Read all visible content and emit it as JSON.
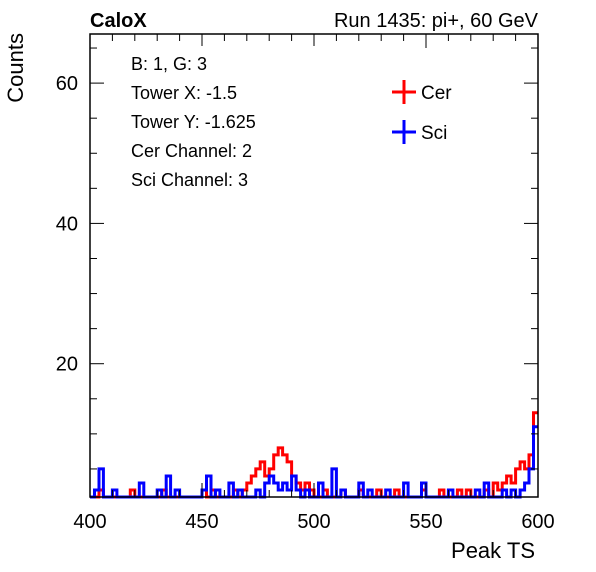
{
  "header": {
    "left": "CaloX",
    "right": "Run 1435: pi+, 60 GeV"
  },
  "info_box": {
    "lines": [
      "B: 1, G: 3",
      "Tower X: -1.5",
      "Tower Y: -1.625",
      "Cer Channel: 2",
      "Sci Channel: 3"
    ]
  },
  "chart_data": {
    "type": "line",
    "title": "",
    "xlabel": "Peak TS",
    "ylabel": "Counts",
    "xlim": [
      400,
      600
    ],
    "ylim": [
      1,
      67
    ],
    "x_ticks": [
      400,
      450,
      500,
      550,
      600
    ],
    "y_ticks": [
      20,
      40,
      60
    ],
    "bin_width": 2,
    "legend_position": "top-right",
    "grid": false,
    "series": [
      {
        "name": "Cer",
        "color": "#ff0000",
        "values": [
          {
            "x": 400,
            "y": 1
          },
          {
            "x": 404,
            "y": 2
          },
          {
            "x": 410,
            "y": 1
          },
          {
            "x": 414,
            "y": 1
          },
          {
            "x": 418,
            "y": 2
          },
          {
            "x": 422,
            "y": 1
          },
          {
            "x": 428,
            "y": 1
          },
          {
            "x": 432,
            "y": 2
          },
          {
            "x": 440,
            "y": 1
          },
          {
            "x": 446,
            "y": 1
          },
          {
            "x": 450,
            "y": 2
          },
          {
            "x": 454,
            "y": 2
          },
          {
            "x": 460,
            "y": 1
          },
          {
            "x": 464,
            "y": 2
          },
          {
            "x": 468,
            "y": 2
          },
          {
            "x": 470,
            "y": 3
          },
          {
            "x": 472,
            "y": 4
          },
          {
            "x": 474,
            "y": 5
          },
          {
            "x": 476,
            "y": 6
          },
          {
            "x": 478,
            "y": 4
          },
          {
            "x": 480,
            "y": 5
          },
          {
            "x": 482,
            "y": 7
          },
          {
            "x": 484,
            "y": 8
          },
          {
            "x": 486,
            "y": 7
          },
          {
            "x": 488,
            "y": 6
          },
          {
            "x": 490,
            "y": 4
          },
          {
            "x": 492,
            "y": 3
          },
          {
            "x": 494,
            "y": 2
          },
          {
            "x": 496,
            "y": 3
          },
          {
            "x": 498,
            "y": 2
          },
          {
            "x": 500,
            "y": 1
          },
          {
            "x": 504,
            "y": 2
          },
          {
            "x": 508,
            "y": 1
          },
          {
            "x": 512,
            "y": 2
          },
          {
            "x": 516,
            "y": 1
          },
          {
            "x": 520,
            "y": 2
          },
          {
            "x": 524,
            "y": 1
          },
          {
            "x": 528,
            "y": 2
          },
          {
            "x": 532,
            "y": 1
          },
          {
            "x": 536,
            "y": 2
          },
          {
            "x": 540,
            "y": 1
          },
          {
            "x": 544,
            "y": 1
          },
          {
            "x": 548,
            "y": 2
          },
          {
            "x": 552,
            "y": 1
          },
          {
            "x": 556,
            "y": 2
          },
          {
            "x": 560,
            "y": 1
          },
          {
            "x": 564,
            "y": 2
          },
          {
            "x": 568,
            "y": 2
          },
          {
            "x": 572,
            "y": 1
          },
          {
            "x": 576,
            "y": 2
          },
          {
            "x": 580,
            "y": 3
          },
          {
            "x": 582,
            "y": 2
          },
          {
            "x": 584,
            "y": 3
          },
          {
            "x": 586,
            "y": 4
          },
          {
            "x": 588,
            "y": 3
          },
          {
            "x": 590,
            "y": 5
          },
          {
            "x": 592,
            "y": 6
          },
          {
            "x": 594,
            "y": 5
          },
          {
            "x": 596,
            "y": 7
          },
          {
            "x": 598,
            "y": 13
          }
        ]
      },
      {
        "name": "Sci",
        "color": "#0000ff",
        "values": [
          {
            "x": 400,
            "y": 1
          },
          {
            "x": 402,
            "y": 2
          },
          {
            "x": 404,
            "y": 5
          },
          {
            "x": 406,
            "y": 1
          },
          {
            "x": 410,
            "y": 2
          },
          {
            "x": 414,
            "y": 1
          },
          {
            "x": 418,
            "y": 1
          },
          {
            "x": 422,
            "y": 3
          },
          {
            "x": 426,
            "y": 1
          },
          {
            "x": 430,
            "y": 2
          },
          {
            "x": 434,
            "y": 4
          },
          {
            "x": 438,
            "y": 2
          },
          {
            "x": 442,
            "y": 1
          },
          {
            "x": 446,
            "y": 1
          },
          {
            "x": 450,
            "y": 2
          },
          {
            "x": 452,
            "y": 4
          },
          {
            "x": 456,
            "y": 2
          },
          {
            "x": 458,
            "y": 1
          },
          {
            "x": 462,
            "y": 3
          },
          {
            "x": 466,
            "y": 2
          },
          {
            "x": 470,
            "y": 1
          },
          {
            "x": 474,
            "y": 2
          },
          {
            "x": 478,
            "y": 3
          },
          {
            "x": 480,
            "y": 4
          },
          {
            "x": 482,
            "y": 3
          },
          {
            "x": 484,
            "y": 2
          },
          {
            "x": 486,
            "y": 3
          },
          {
            "x": 488,
            "y": 2
          },
          {
            "x": 490,
            "y": 4
          },
          {
            "x": 492,
            "y": 2
          },
          {
            "x": 494,
            "y": 1
          },
          {
            "x": 496,
            "y": 2
          },
          {
            "x": 498,
            "y": 1
          },
          {
            "x": 502,
            "y": 3
          },
          {
            "x": 506,
            "y": 1
          },
          {
            "x": 508,
            "y": 5
          },
          {
            "x": 512,
            "y": 2
          },
          {
            "x": 516,
            "y": 1
          },
          {
            "x": 520,
            "y": 3
          },
          {
            "x": 524,
            "y": 2
          },
          {
            "x": 528,
            "y": 1
          },
          {
            "x": 532,
            "y": 2
          },
          {
            "x": 536,
            "y": 1
          },
          {
            "x": 540,
            "y": 3
          },
          {
            "x": 544,
            "y": 1
          },
          {
            "x": 548,
            "y": 3
          },
          {
            "x": 552,
            "y": 1
          },
          {
            "x": 556,
            "y": 1
          },
          {
            "x": 560,
            "y": 2
          },
          {
            "x": 564,
            "y": 1
          },
          {
            "x": 568,
            "y": 1
          },
          {
            "x": 572,
            "y": 2
          },
          {
            "x": 576,
            "y": 3
          },
          {
            "x": 580,
            "y": 1
          },
          {
            "x": 584,
            "y": 2
          },
          {
            "x": 586,
            "y": 1
          },
          {
            "x": 588,
            "y": 2
          },
          {
            "x": 590,
            "y": 1
          },
          {
            "x": 592,
            "y": 2
          },
          {
            "x": 594,
            "y": 3
          },
          {
            "x": 596,
            "y": 5
          },
          {
            "x": 598,
            "y": 11
          }
        ]
      }
    ]
  }
}
